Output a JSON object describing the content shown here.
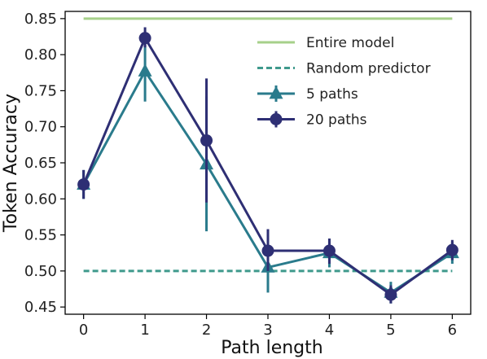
{
  "chart_data": {
    "type": "line",
    "xlabel": "Path length",
    "ylabel": "Token Accuracy",
    "xlim": [
      -0.3,
      6.3
    ],
    "ylim": [
      0.44,
      0.86
    ],
    "xticks": [
      0,
      1,
      2,
      3,
      4,
      5,
      6
    ],
    "yticks": [
      0.45,
      0.5,
      0.55,
      0.6,
      0.65,
      0.7,
      0.75,
      0.8,
      0.85
    ],
    "legend_position": "top-right",
    "reference_lines": [
      {
        "name": "Entire model",
        "y": 0.85,
        "color": "#a6d08a",
        "style": "solid"
      },
      {
        "name": "Random predictor",
        "y": 0.5,
        "color": "#3f9a8c",
        "style": "dashed"
      }
    ],
    "series": [
      {
        "name": "5 paths",
        "color": "#2a7b8c",
        "marker": "triangle",
        "x": [
          0,
          1,
          2,
          3,
          4,
          5,
          6
        ],
        "values": [
          0.62,
          0.777,
          0.648,
          0.505,
          0.525,
          0.47,
          0.525
        ],
        "err_low": [
          0.6,
          0.735,
          0.555,
          0.47,
          0.505,
          0.455,
          0.51
        ],
        "err_high": [
          0.64,
          0.82,
          0.742,
          0.538,
          0.545,
          0.485,
          0.54
        ]
      },
      {
        "name": "20 paths",
        "color": "#2e2f74",
        "marker": "circle",
        "x": [
          0,
          1,
          2,
          3,
          4,
          5,
          6
        ],
        "values": [
          0.62,
          0.823,
          0.681,
          0.528,
          0.528,
          0.467,
          0.529
        ],
        "err_low": [
          0.6,
          0.81,
          0.595,
          0.5,
          0.51,
          0.455,
          0.515
        ],
        "err_high": [
          0.64,
          0.838,
          0.767,
          0.558,
          0.545,
          0.48,
          0.543
        ]
      }
    ]
  }
}
